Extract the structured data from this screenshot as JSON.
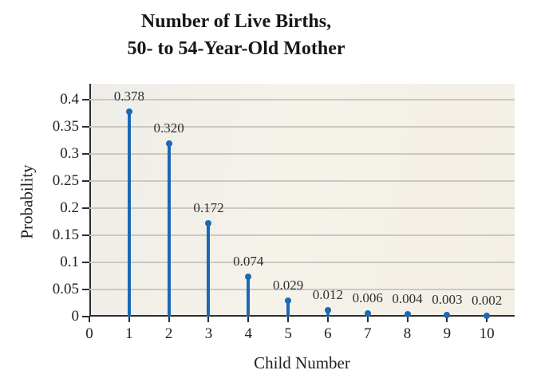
{
  "figure": {
    "title_line1": "Number of Live Births,",
    "title_line2": "50- to 54-Year-Old Mother"
  },
  "chart_data": {
    "type": "stem",
    "title": "Number of Live Births, 50- to 54-Year-Old Mother",
    "xlabel": "Child Number",
    "ylabel": "Probability",
    "x": [
      1,
      2,
      3,
      4,
      5,
      6,
      7,
      8,
      9,
      10
    ],
    "values": [
      0.378,
      0.32,
      0.172,
      0.074,
      0.029,
      0.012,
      0.006,
      0.004,
      0.003,
      0.002
    ],
    "point_labels": [
      "0.378",
      "0.320",
      "0.172",
      "0.074",
      "0.029",
      "0.012",
      "0.006",
      "0.004",
      "0.003",
      "0.002"
    ],
    "x_ticks": {
      "values": [
        0,
        1,
        2,
        3,
        4,
        5,
        6,
        7,
        8,
        9,
        10
      ],
      "labels": [
        "0",
        "1",
        "2",
        "3",
        "4",
        "5",
        "6",
        "7",
        "8",
        "9",
        "10"
      ]
    },
    "y_ticks": {
      "values": [
        0,
        0.05,
        0.1,
        0.15,
        0.2,
        0.25,
        0.3,
        0.35,
        0.4
      ],
      "labels": [
        "0",
        "0.05",
        "0.1",
        "0.15",
        "0.2",
        "0.25",
        "0.3",
        "0.35",
        "0.4"
      ]
    },
    "xlim": [
      0,
      10.7
    ],
    "ylim": [
      0,
      0.43
    ],
    "grid": "horizontal",
    "legend": "none",
    "colors": {
      "stem": "#1a69b4",
      "grid": "#cac8c1",
      "axis": "#2e2e2e",
      "plot_bg": "#f4f1e9",
      "text": "#222222"
    }
  }
}
